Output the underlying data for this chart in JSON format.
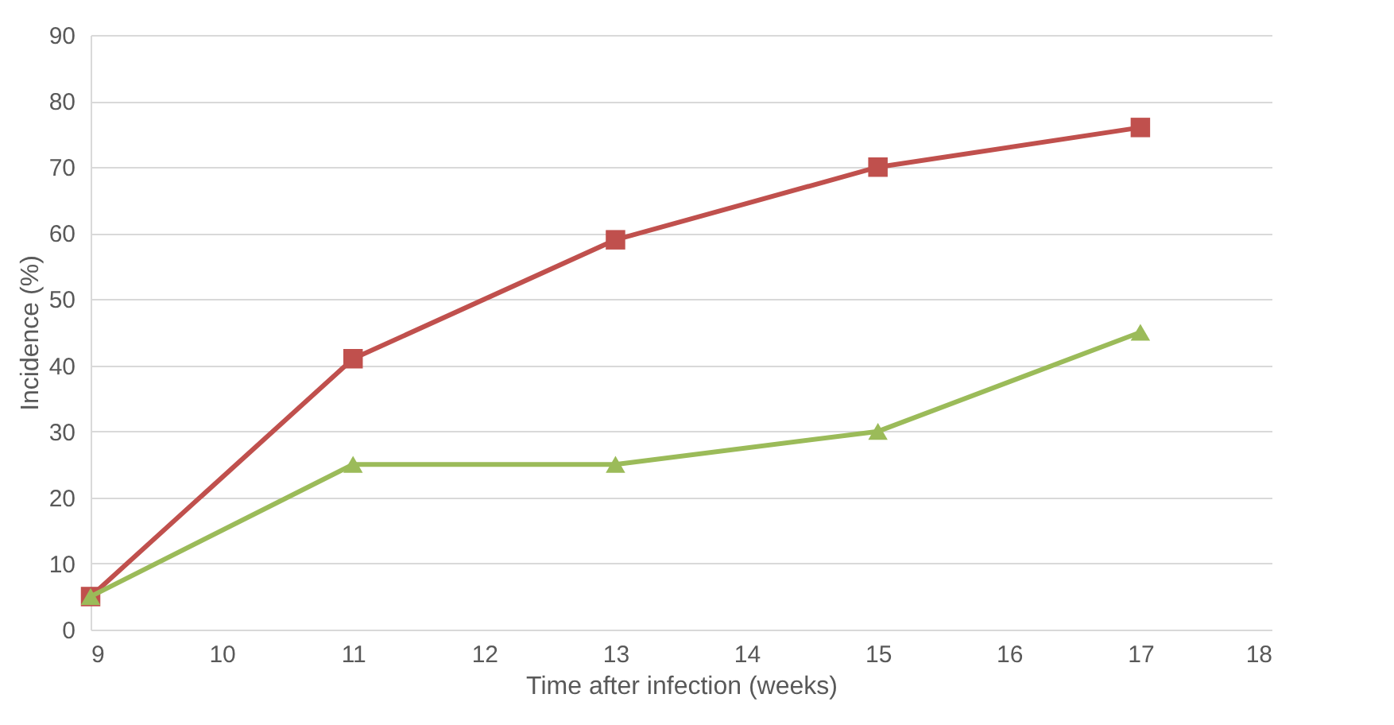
{
  "chart_data": {
    "type": "line",
    "xlabel": "Time after infection (weeks)",
    "ylabel": "Incidence (%)",
    "x": [
      9,
      11,
      13,
      15,
      17
    ],
    "series": [
      {
        "color": "#c0504d",
        "marker": "square",
        "values": [
          5,
          41,
          59,
          70,
          76
        ]
      },
      {
        "color": "#9bbb59",
        "marker": "triangle",
        "values": [
          5,
          25,
          25,
          30,
          45
        ]
      }
    ],
    "xlim": [
      9,
      18
    ],
    "xticks": [
      9,
      10,
      11,
      12,
      13,
      14,
      15,
      16,
      17,
      18
    ],
    "ylim": [
      0,
      90
    ],
    "yticks": [
      0,
      10,
      20,
      30,
      40,
      50,
      60,
      70,
      80,
      90
    ],
    "grid": "y",
    "legend": false,
    "line_style": "solid"
  }
}
